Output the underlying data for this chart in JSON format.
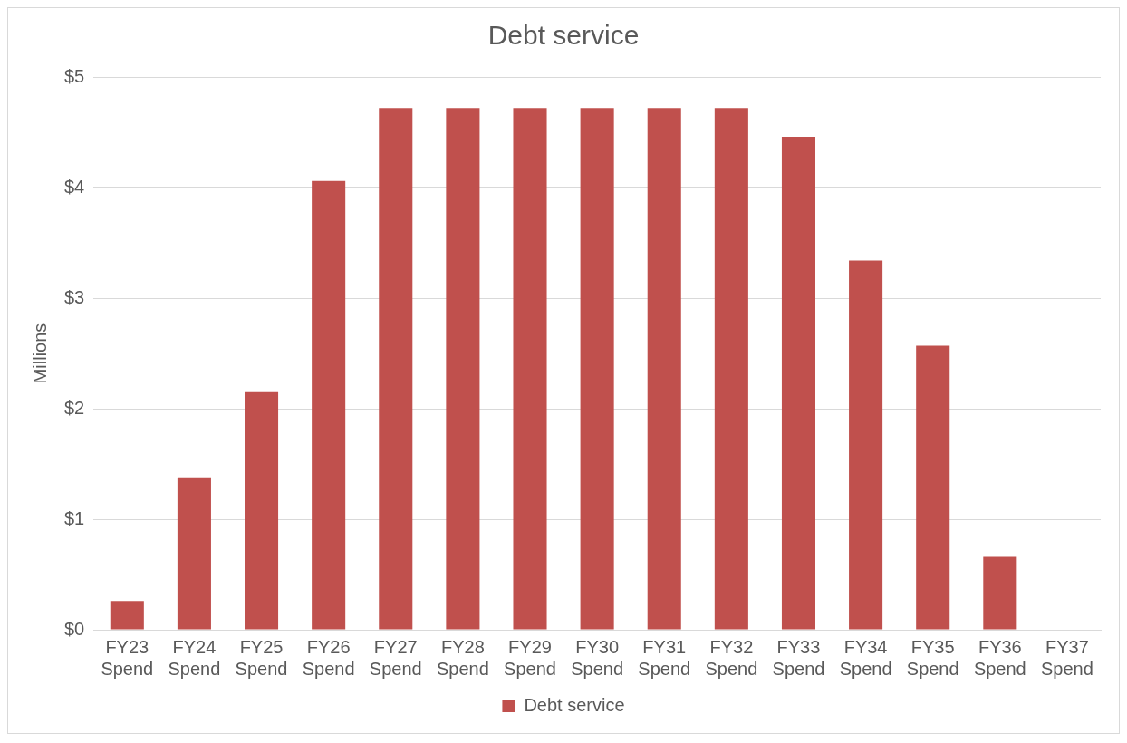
{
  "chart_data": {
    "type": "bar",
    "title": "Debt service",
    "ylabel": "Millions",
    "categories": [
      "FY23 Spend",
      "FY24 Spend",
      "FY25 Spend",
      "FY26 Spend",
      "FY27 Spend",
      "FY28 Spend",
      "FY29 Spend",
      "FY30 Spend",
      "FY31 Spend",
      "FY32 Spend",
      "FY33 Spend",
      "FY34 Spend",
      "FY35 Spend",
      "FY36 Spend",
      "FY37 Spend"
    ],
    "series": [
      {
        "name": "Debt service",
        "color": "#c0504d",
        "values": [
          0.26,
          1.38,
          2.15,
          4.06,
          4.72,
          4.72,
          4.72,
          4.72,
          4.72,
          4.72,
          4.46,
          3.34,
          2.57,
          0.66,
          0
        ]
      }
    ],
    "ylim": [
      0,
      5
    ],
    "yticks": [
      {
        "value": 0,
        "label": "$0"
      },
      {
        "value": 1,
        "label": "$1"
      },
      {
        "value": 2,
        "label": "$2"
      },
      {
        "value": 3,
        "label": "$3"
      },
      {
        "value": 4,
        "label": "$4"
      },
      {
        "value": 5,
        "label": "$5"
      }
    ],
    "grid": "y",
    "legend": "bottom"
  }
}
